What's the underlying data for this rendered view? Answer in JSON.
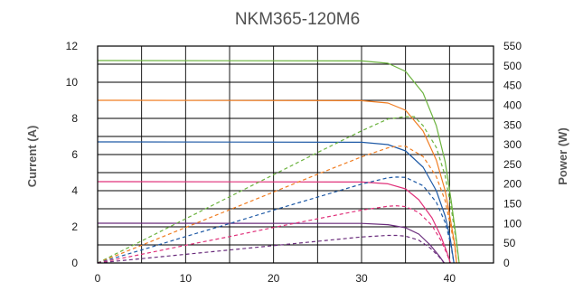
{
  "chart_data": {
    "type": "line",
    "title": "NKM365-120M6",
    "ylabel_left": "Current (A)",
    "ylabel_right": "Power (W)",
    "xlim": [
      0,
      45
    ],
    "ylim_left": [
      0,
      12
    ],
    "ylim_right": [
      0,
      550
    ],
    "x_ticks": [
      "0",
      "10",
      "20",
      "30",
      "40"
    ],
    "y_ticks_left": [
      "0",
      "2",
      "4",
      "6",
      "8",
      "10",
      "12"
    ],
    "y_ticks_right": [
      "0",
      "50",
      "100",
      "150",
      "200",
      "250",
      "300",
      "350",
      "400",
      "450",
      "500",
      "550"
    ],
    "grid": true,
    "series": [
      {
        "kind": "current",
        "color": "#6cb33f",
        "points": [
          [
            0,
            11.2
          ],
          [
            30,
            11.18
          ],
          [
            33,
            11.05
          ],
          [
            35,
            10.6
          ],
          [
            37,
            9.4
          ],
          [
            38.5,
            7.6
          ],
          [
            39.5,
            5.6
          ],
          [
            40.2,
            3.4
          ],
          [
            40.7,
            1.6
          ],
          [
            41.1,
            0
          ]
        ]
      },
      {
        "kind": "current",
        "color": "#f07d22",
        "points": [
          [
            0,
            9.0
          ],
          [
            30,
            8.98
          ],
          [
            33,
            8.85
          ],
          [
            35,
            8.45
          ],
          [
            37,
            7.3
          ],
          [
            38.5,
            5.7
          ],
          [
            39.5,
            4.0
          ],
          [
            40.1,
            2.4
          ],
          [
            40.6,
            1.0
          ],
          [
            40.8,
            0
          ]
        ]
      },
      {
        "kind": "current",
        "color": "#1f5aa6",
        "points": [
          [
            0,
            6.7
          ],
          [
            30,
            6.68
          ],
          [
            33,
            6.55
          ],
          [
            35,
            6.2
          ],
          [
            37,
            5.3
          ],
          [
            38.5,
            4.0
          ],
          [
            39.5,
            2.6
          ],
          [
            40.1,
            1.3
          ],
          [
            40.5,
            0
          ]
        ]
      },
      {
        "kind": "current",
        "color": "#e0317a",
        "points": [
          [
            0,
            4.5
          ],
          [
            30,
            4.48
          ],
          [
            33,
            4.38
          ],
          [
            35,
            4.1
          ],
          [
            36.5,
            3.5
          ],
          [
            38,
            2.5
          ],
          [
            39,
            1.5
          ],
          [
            39.7,
            0.6
          ],
          [
            40.1,
            0
          ]
        ]
      },
      {
        "kind": "current",
        "color": "#6a2c7c",
        "points": [
          [
            0,
            2.2
          ],
          [
            30,
            2.19
          ],
          [
            33,
            2.12
          ],
          [
            35,
            1.95
          ],
          [
            36.5,
            1.6
          ],
          [
            37.8,
            1.0
          ],
          [
            38.8,
            0.4
          ],
          [
            39.4,
            0
          ]
        ]
      },
      {
        "kind": "power",
        "color": "#6cb33f",
        "points": [
          [
            0,
            0
          ],
          [
            5,
            56
          ],
          [
            10,
            112
          ],
          [
            15,
            168
          ],
          [
            20,
            224
          ],
          [
            25,
            280
          ],
          [
            30,
            335
          ],
          [
            33,
            365
          ],
          [
            35,
            371
          ],
          [
            36,
            371
          ],
          [
            37,
            348
          ],
          [
            38.5,
            293
          ],
          [
            39.5,
            221
          ],
          [
            40.2,
            137
          ],
          [
            40.7,
            65
          ],
          [
            41.1,
            0
          ]
        ]
      },
      {
        "kind": "power",
        "color": "#f07d22",
        "points": [
          [
            0,
            0
          ],
          [
            5,
            45
          ],
          [
            10,
            90
          ],
          [
            15,
            135
          ],
          [
            20,
            180
          ],
          [
            25,
            225
          ],
          [
            30,
            269
          ],
          [
            33,
            292
          ],
          [
            34,
            296
          ],
          [
            35,
            296
          ],
          [
            37,
            270
          ],
          [
            38.5,
            219
          ],
          [
            39.5,
            158
          ],
          [
            40.1,
            96
          ],
          [
            40.6,
            41
          ],
          [
            40.8,
            0
          ]
        ]
      },
      {
        "kind": "power",
        "color": "#1f5aa6",
        "points": [
          [
            0,
            0
          ],
          [
            5,
            33
          ],
          [
            10,
            67
          ],
          [
            15,
            100
          ],
          [
            20,
            134
          ],
          [
            25,
            167
          ],
          [
            30,
            200
          ],
          [
            33,
            216
          ],
          [
            34,
            218
          ],
          [
            35,
            217
          ],
          [
            37,
            196
          ],
          [
            38.5,
            154
          ],
          [
            39.5,
            103
          ],
          [
            40.1,
            52
          ],
          [
            40.5,
            0
          ]
        ]
      },
      {
        "kind": "power",
        "color": "#e0317a",
        "points": [
          [
            0,
            0
          ],
          [
            5,
            22
          ],
          [
            10,
            45
          ],
          [
            15,
            67
          ],
          [
            20,
            90
          ],
          [
            25,
            112
          ],
          [
            30,
            134
          ],
          [
            33,
            144
          ],
          [
            34,
            145
          ],
          [
            35,
            143
          ],
          [
            36.5,
            128
          ],
          [
            38,
            95
          ],
          [
            39,
            58
          ],
          [
            39.7,
            24
          ],
          [
            40.1,
            0
          ]
        ]
      },
      {
        "kind": "power",
        "color": "#6a2c7c",
        "points": [
          [
            0,
            0
          ],
          [
            5,
            11
          ],
          [
            10,
            22
          ],
          [
            15,
            33
          ],
          [
            20,
            44
          ],
          [
            25,
            55
          ],
          [
            30,
            66
          ],
          [
            33,
            70
          ],
          [
            34,
            70
          ],
          [
            35,
            68
          ],
          [
            36.5,
            58
          ],
          [
            37.8,
            38
          ],
          [
            38.8,
            16
          ],
          [
            39.4,
            0
          ]
        ]
      }
    ]
  }
}
